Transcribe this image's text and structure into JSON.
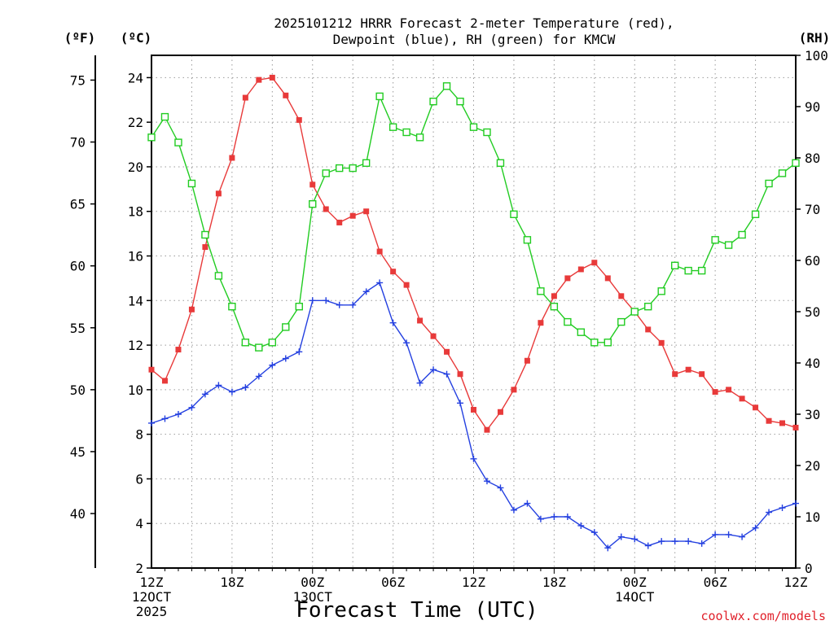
{
  "chart_data": {
    "type": "line",
    "title_lines": [
      "2025101212 HRRR Forecast 2-meter Temperature (red),",
      "Dewpoint (blue), RH (green) for KMCW"
    ],
    "xlabel": "Forecast Time (UTC)",
    "credit": "coolwx.com/models",
    "units": {
      "fahrenheit": "(ºF)",
      "celsius": "(ºC)",
      "rh": "(RH)"
    },
    "x_axis": {
      "range_hours": [
        0,
        48
      ],
      "ticks": [
        {
          "hour": 0,
          "lines": [
            "12Z",
            "12OCT",
            "2025"
          ]
        },
        {
          "hour": 6,
          "lines": [
            "18Z"
          ]
        },
        {
          "hour": 12,
          "lines": [
            "00Z",
            "13OCT"
          ]
        },
        {
          "hour": 18,
          "lines": [
            "06Z"
          ]
        },
        {
          "hour": 24,
          "lines": [
            "12Z"
          ]
        },
        {
          "hour": 30,
          "lines": [
            "18Z"
          ]
        },
        {
          "hour": 36,
          "lines": [
            "00Z",
            "14OCT"
          ]
        },
        {
          "hour": 42,
          "lines": [
            "06Z"
          ]
        },
        {
          "hour": 48,
          "lines": [
            "12Z"
          ]
        }
      ]
    },
    "celsius_axis": {
      "range": [
        2,
        25
      ],
      "ticks": [
        "2",
        "4",
        "6",
        "8",
        "10",
        "12",
        "14",
        "16",
        "18",
        "20",
        "22",
        "24"
      ]
    },
    "fahrenheit_axis": {
      "ticks": [
        "40",
        "45",
        "50",
        "55",
        "60",
        "65",
        "70",
        "75"
      ]
    },
    "rh_axis": {
      "range": [
        0,
        100
      ],
      "ticks": [
        "0",
        "10",
        "20",
        "30",
        "40",
        "50",
        "60",
        "70",
        "80",
        "90",
        "100"
      ]
    },
    "grid": true,
    "series": [
      {
        "name": "Temperature",
        "color": "#e83a3a",
        "marker": "filled-square",
        "axis": "celsius",
        "values": [
          10.9,
          10.4,
          11.8,
          13.6,
          16.4,
          18.8,
          20.4,
          23.1,
          23.9,
          24.0,
          23.2,
          22.1,
          19.2,
          18.1,
          17.5,
          17.8,
          18.0,
          16.2,
          15.3,
          14.7,
          13.1,
          12.4,
          11.7,
          10.7,
          9.1,
          8.2,
          9.0,
          10.0,
          11.3,
          13.0,
          14.2,
          15.0,
          15.4,
          15.7,
          15.0,
          14.2,
          13.5,
          12.7,
          12.1,
          10.7,
          10.9,
          10.7,
          9.9,
          10.0,
          9.6,
          9.2,
          8.6,
          8.5,
          8.3
        ]
      },
      {
        "name": "Dewpoint",
        "color": "#2440e0",
        "marker": "plus",
        "axis": "celsius",
        "values": [
          8.5,
          8.7,
          8.9,
          9.2,
          9.8,
          10.2,
          9.9,
          10.1,
          10.6,
          11.1,
          11.4,
          11.7,
          14.0,
          14.0,
          13.8,
          13.8,
          14.4,
          14.8,
          13.0,
          12.1,
          10.3,
          10.9,
          10.7,
          9.4,
          6.9,
          5.9,
          5.6,
          4.6,
          4.9,
          4.2,
          4.3,
          4.3,
          3.9,
          3.6,
          2.9,
          3.4,
          3.3,
          3.0,
          3.2,
          3.2,
          3.2,
          3.1,
          3.5,
          3.5,
          3.4,
          3.8,
          4.5,
          4.7,
          4.9
        ]
      },
      {
        "name": "RH",
        "color": "#22cc22",
        "marker": "open-square",
        "axis": "rh",
        "values": [
          84,
          88,
          83,
          75,
          65,
          57,
          51,
          44,
          43,
          44,
          47,
          51,
          71,
          77,
          78,
          78,
          79,
          92,
          86,
          85,
          84,
          91,
          94,
          91,
          86,
          85,
          79,
          69,
          64,
          54,
          51,
          48,
          46,
          44,
          44,
          48,
          50,
          51,
          54,
          59,
          58,
          58,
          64,
          63,
          65,
          69,
          75,
          77,
          79
        ]
      }
    ]
  }
}
